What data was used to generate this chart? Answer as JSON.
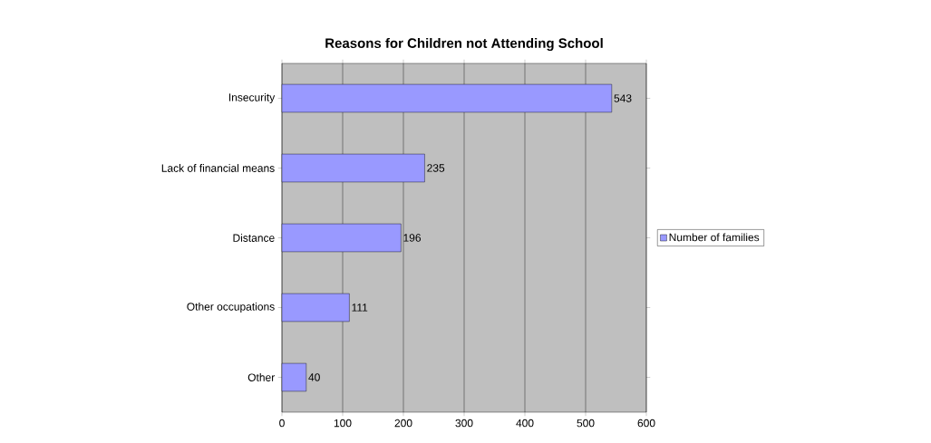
{
  "chart_data": {
    "type": "bar",
    "orientation": "horizontal",
    "title": "Reasons for Children not Attending School",
    "categories": [
      "Insecurity",
      "Lack of financial means",
      "Distance",
      "Other occupations",
      "Other"
    ],
    "series": [
      {
        "name": "Number of families",
        "color": "#9999ff",
        "values": [
          543,
          235,
          196,
          111,
          40
        ]
      }
    ],
    "xlim": [
      0,
      600
    ],
    "xticks": [
      0,
      100,
      200,
      300,
      400,
      500,
      600
    ],
    "grid": "x",
    "legend": "right",
    "data_labels": true
  }
}
